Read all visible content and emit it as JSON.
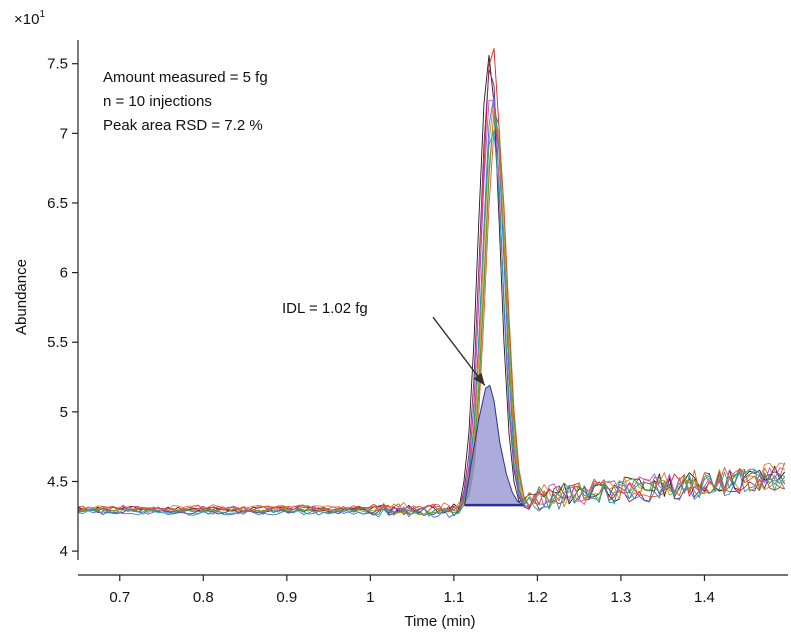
{
  "chart_data": {
    "type": "line",
    "title": "",
    "xlabel": "Time (min)",
    "ylabel": "Abundance",
    "y_multiplier": "×10",
    "y_multiplier_exponent": "1",
    "xlim": [
      0.65,
      1.5
    ],
    "ylim": [
      3.85,
      7.9
    ],
    "x_ticks": [
      0.7,
      0.8,
      0.9,
      1,
      1.1,
      1.2,
      1.3,
      1.4
    ],
    "x_tick_labels": [
      "0.7",
      "0.8",
      "0.9",
      "1",
      "1.1",
      "1.2",
      "1.3",
      "1.4"
    ],
    "y_ticks": [
      4,
      4.5,
      5,
      5.5,
      6,
      6.5,
      7,
      7.5
    ],
    "y_tick_labels": [
      "4",
      "4.5",
      "5",
      "5.5",
      "6",
      "6.5",
      "7",
      "7.5"
    ],
    "grid": false,
    "legend": "none",
    "annotations": {
      "info_lines": [
        "Amount measured = 5 fg",
        "n = 10 injections",
        "Peak area RSD = 7.2 %"
      ],
      "idl_label": "IDL = 1.02 fg",
      "idl_arrow_from": [
        1.075,
        5.68
      ],
      "idl_arrow_to": [
        1.137,
        5.19
      ]
    },
    "idl_area": {
      "color": "#8f8fd0",
      "edge_color": "#2f2f9a",
      "baseline": 4.33,
      "x": [
        1.113,
        1.12,
        1.13,
        1.138,
        1.143,
        1.148,
        1.155,
        1.163,
        1.17,
        1.176,
        1.183
      ],
      "y": [
        4.33,
        4.6,
        4.95,
        5.17,
        5.19,
        5.08,
        4.78,
        4.55,
        4.42,
        4.36,
        4.33
      ]
    },
    "series": [
      {
        "color": "#e02020",
        "peak_time": 1.146,
        "peak_height": 7.65,
        "offset": 0.0,
        "seed": 3
      },
      {
        "color": "#1a1a1a",
        "peak_time": 1.142,
        "peak_height": 7.56,
        "offset": 0.01,
        "seed": 11
      },
      {
        "color": "#8a1a6e",
        "peak_time": 1.144,
        "peak_height": 7.5,
        "offset": -0.01,
        "seed": 19
      },
      {
        "color": "#e87820",
        "peak_time": 1.148,
        "peak_height": 7.25,
        "offset": 0.02,
        "seed": 27
      },
      {
        "color": "#2e9a3a",
        "peak_time": 1.15,
        "peak_height": 7.2,
        "offset": 0.0,
        "seed": 35
      },
      {
        "color": "#3a7ad8",
        "peak_time": 1.147,
        "peak_height": 7.28,
        "offset": -0.02,
        "seed": 43
      },
      {
        "color": "#c848c8",
        "peak_time": 1.145,
        "peak_height": 7.32,
        "offset": 0.01,
        "seed": 51
      },
      {
        "color": "#9a9a20",
        "peak_time": 1.149,
        "peak_height": 7.15,
        "offset": 0.0,
        "seed": 59
      },
      {
        "color": "#d85a2a",
        "peak_time": 1.151,
        "peak_height": 7.1,
        "offset": 0.015,
        "seed": 67
      },
      {
        "color": "#20a0a0",
        "peak_time": 1.146,
        "peak_height": 7.05,
        "offset": -0.015,
        "seed": 75
      }
    ]
  }
}
